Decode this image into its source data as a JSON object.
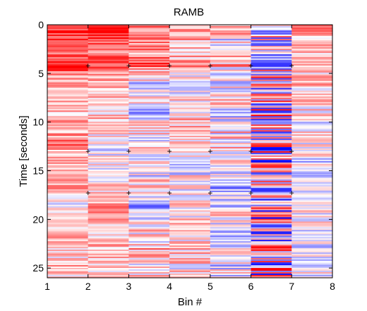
{
  "chart_data": {
    "type": "heatmap",
    "title": "RAMB",
    "xlabel": "Bin #",
    "ylabel": "Time [seconds]",
    "xlim": [
      1,
      8
    ],
    "ylim": [
      0,
      26
    ],
    "y_reversed": true,
    "x_ticks": [
      1,
      2,
      3,
      4,
      5,
      6,
      7,
      8
    ],
    "y_ticks": [
      0,
      5,
      10,
      15,
      20,
      25
    ],
    "grid": false,
    "colormap": {
      "negative": "#0000ff",
      "zero": "#ffffff",
      "positive": "#ff0000"
    },
    "columns": [
      {
        "bin_start": 1,
        "bin_end": 2,
        "profile": [
          [
            0,
            0.9
          ],
          [
            3,
            0.6
          ],
          [
            4,
            1.0
          ],
          [
            5,
            0.5
          ],
          [
            6,
            0.3
          ],
          [
            7,
            0.2
          ],
          [
            8,
            0.4
          ],
          [
            9,
            0.2
          ],
          [
            10,
            0.5
          ],
          [
            11,
            0.3
          ],
          [
            12,
            0.6
          ],
          [
            13,
            0.3
          ],
          [
            14,
            0.2
          ],
          [
            15,
            0.35
          ],
          [
            16,
            0.3
          ],
          [
            17,
            0.5
          ],
          [
            18,
            0.1
          ],
          [
            18.5,
            -0.3
          ],
          [
            19,
            0.1
          ],
          [
            20,
            0.3
          ],
          [
            21,
            0.1
          ],
          [
            22,
            0.4
          ],
          [
            23,
            0.2
          ],
          [
            24,
            0.1
          ],
          [
            25,
            0.3
          ],
          [
            26,
            0.1
          ]
        ],
        "noise": 0.35,
        "seed": 11
      },
      {
        "bin_start": 2,
        "bin_end": 3,
        "profile": [
          [
            0,
            1.0
          ],
          [
            3,
            0.5
          ],
          [
            4,
            0.8
          ],
          [
            5,
            0.4
          ],
          [
            6,
            0.3
          ],
          [
            7,
            0.2
          ],
          [
            8,
            0.3
          ],
          [
            9,
            0.15
          ],
          [
            10,
            0.3
          ],
          [
            11,
            0.1
          ],
          [
            12,
            -0.05
          ],
          [
            13,
            -0.1
          ],
          [
            14,
            0.1
          ],
          [
            15,
            0.0
          ],
          [
            16,
            0.1
          ],
          [
            17,
            0.2
          ],
          [
            18,
            0.3
          ],
          [
            19,
            0.4
          ],
          [
            20,
            0.3
          ],
          [
            21,
            0.2
          ],
          [
            22,
            0.2
          ],
          [
            23,
            0.3
          ],
          [
            24,
            0.2
          ],
          [
            25,
            0.2
          ],
          [
            26,
            0.2
          ]
        ],
        "noise": 0.35,
        "seed": 23
      },
      {
        "bin_start": 3,
        "bin_end": 4,
        "profile": [
          [
            0,
            0.7
          ],
          [
            3,
            0.4
          ],
          [
            4,
            0.7
          ],
          [
            5,
            0.2
          ],
          [
            6,
            -0.1
          ],
          [
            7,
            -0.1
          ],
          [
            8,
            0.1
          ],
          [
            9,
            -0.3
          ],
          [
            10,
            0.0
          ],
          [
            11,
            0.1
          ],
          [
            12,
            0.0
          ],
          [
            13,
            0.2
          ],
          [
            14,
            0.0
          ],
          [
            15,
            -0.2
          ],
          [
            16,
            0.1
          ],
          [
            17,
            0.0
          ],
          [
            18,
            -0.1
          ],
          [
            19,
            -0.4
          ],
          [
            20,
            0.1
          ],
          [
            21,
            0.2
          ],
          [
            22,
            0.0
          ],
          [
            23,
            0.3
          ],
          [
            24,
            0.2
          ],
          [
            25,
            0.1
          ],
          [
            26,
            0.1
          ]
        ],
        "noise": 0.45,
        "seed": 37
      },
      {
        "bin_start": 4,
        "bin_end": 5,
        "profile": [
          [
            0,
            0.5
          ],
          [
            2,
            0.3
          ],
          [
            3,
            0.2
          ],
          [
            4,
            0.5
          ],
          [
            5,
            0.2
          ],
          [
            6,
            0.1
          ],
          [
            7,
            0.0
          ],
          [
            8,
            0.2
          ],
          [
            9,
            0.1
          ],
          [
            10,
            0.2
          ],
          [
            11,
            0.1
          ],
          [
            12,
            0.2
          ],
          [
            13,
            0.1
          ],
          [
            14,
            0.0
          ],
          [
            15,
            -0.1
          ],
          [
            16,
            0.1
          ],
          [
            17,
            0.0
          ],
          [
            18,
            0.1
          ],
          [
            19,
            0.0
          ],
          [
            20,
            0.2
          ],
          [
            21,
            0.1
          ],
          [
            22,
            0.1
          ],
          [
            23,
            0.2
          ],
          [
            24,
            0.1
          ],
          [
            25,
            0.1
          ],
          [
            26,
            0.1
          ]
        ],
        "noise": 0.45,
        "seed": 53
      },
      {
        "bin_start": 5,
        "bin_end": 6,
        "profile": [
          [
            0,
            0.4
          ],
          [
            2,
            -0.1
          ],
          [
            3,
            0.1
          ],
          [
            4,
            0.3
          ],
          [
            5,
            0.0
          ],
          [
            6,
            -0.2
          ],
          [
            7,
            0.1
          ],
          [
            8,
            0.1
          ],
          [
            9,
            -0.1
          ],
          [
            10,
            0.0
          ],
          [
            11,
            0.1
          ],
          [
            12,
            0.1
          ],
          [
            13,
            0.2
          ],
          [
            14,
            0.1
          ],
          [
            15,
            -0.1
          ],
          [
            16,
            -0.2
          ],
          [
            17,
            -0.4
          ],
          [
            18,
            0.0
          ],
          [
            19,
            -0.1
          ],
          [
            20,
            0.1
          ],
          [
            21,
            -0.1
          ],
          [
            22,
            -0.2
          ],
          [
            23,
            -0.1
          ],
          [
            24,
            -0.1
          ],
          [
            25,
            -0.1
          ],
          [
            26,
            0.0
          ]
        ],
        "noise": 0.5,
        "seed": 71
      },
      {
        "bin_start": 6,
        "bin_end": 7,
        "profile": [
          [
            0,
            0.8
          ],
          [
            1,
            0.0
          ],
          [
            3,
            -0.1
          ],
          [
            4,
            0.2
          ],
          [
            6,
            0.0
          ],
          [
            10,
            0.1
          ],
          [
            14,
            -0.1
          ],
          [
            18,
            -0.1
          ],
          [
            22,
            0.0
          ],
          [
            26,
            0.0
          ]
        ],
        "noise": 1.0,
        "seed": 97
      },
      {
        "bin_start": 7,
        "bin_end": 8,
        "profile": [
          [
            0,
            0.9
          ],
          [
            1,
            0.3
          ],
          [
            2,
            0.2
          ],
          [
            3,
            0.3
          ],
          [
            4,
            0.5
          ],
          [
            5,
            0.2
          ],
          [
            6,
            0.3
          ],
          [
            7,
            0.1
          ],
          [
            8,
            0.2
          ],
          [
            9,
            0.1
          ],
          [
            10,
            0.0
          ],
          [
            11,
            0.1
          ],
          [
            12,
            0.0
          ],
          [
            13,
            0.1
          ],
          [
            14,
            -0.1
          ],
          [
            15,
            -0.1
          ],
          [
            16,
            -0.1
          ],
          [
            17,
            0.0
          ],
          [
            18,
            -0.1
          ],
          [
            19,
            0.0
          ],
          [
            20,
            0.1
          ],
          [
            21,
            -0.1
          ],
          [
            22,
            0.0
          ],
          [
            23,
            -0.1
          ],
          [
            24,
            0.0
          ],
          [
            25,
            -0.1
          ],
          [
            26,
            0.0
          ]
        ],
        "noise": 0.4,
        "seed": 131
      }
    ],
    "markers": {
      "symbol": "+",
      "rows": [
        {
          "time": 4.2,
          "bins": [
            2,
            3,
            4,
            5,
            6,
            7
          ]
        },
        {
          "time": 13.0,
          "bins": [
            2,
            3,
            4,
            5,
            6,
            7
          ]
        },
        {
          "time": 17.3,
          "bins": [
            2,
            3,
            4,
            5,
            6,
            7
          ]
        }
      ]
    }
  }
}
